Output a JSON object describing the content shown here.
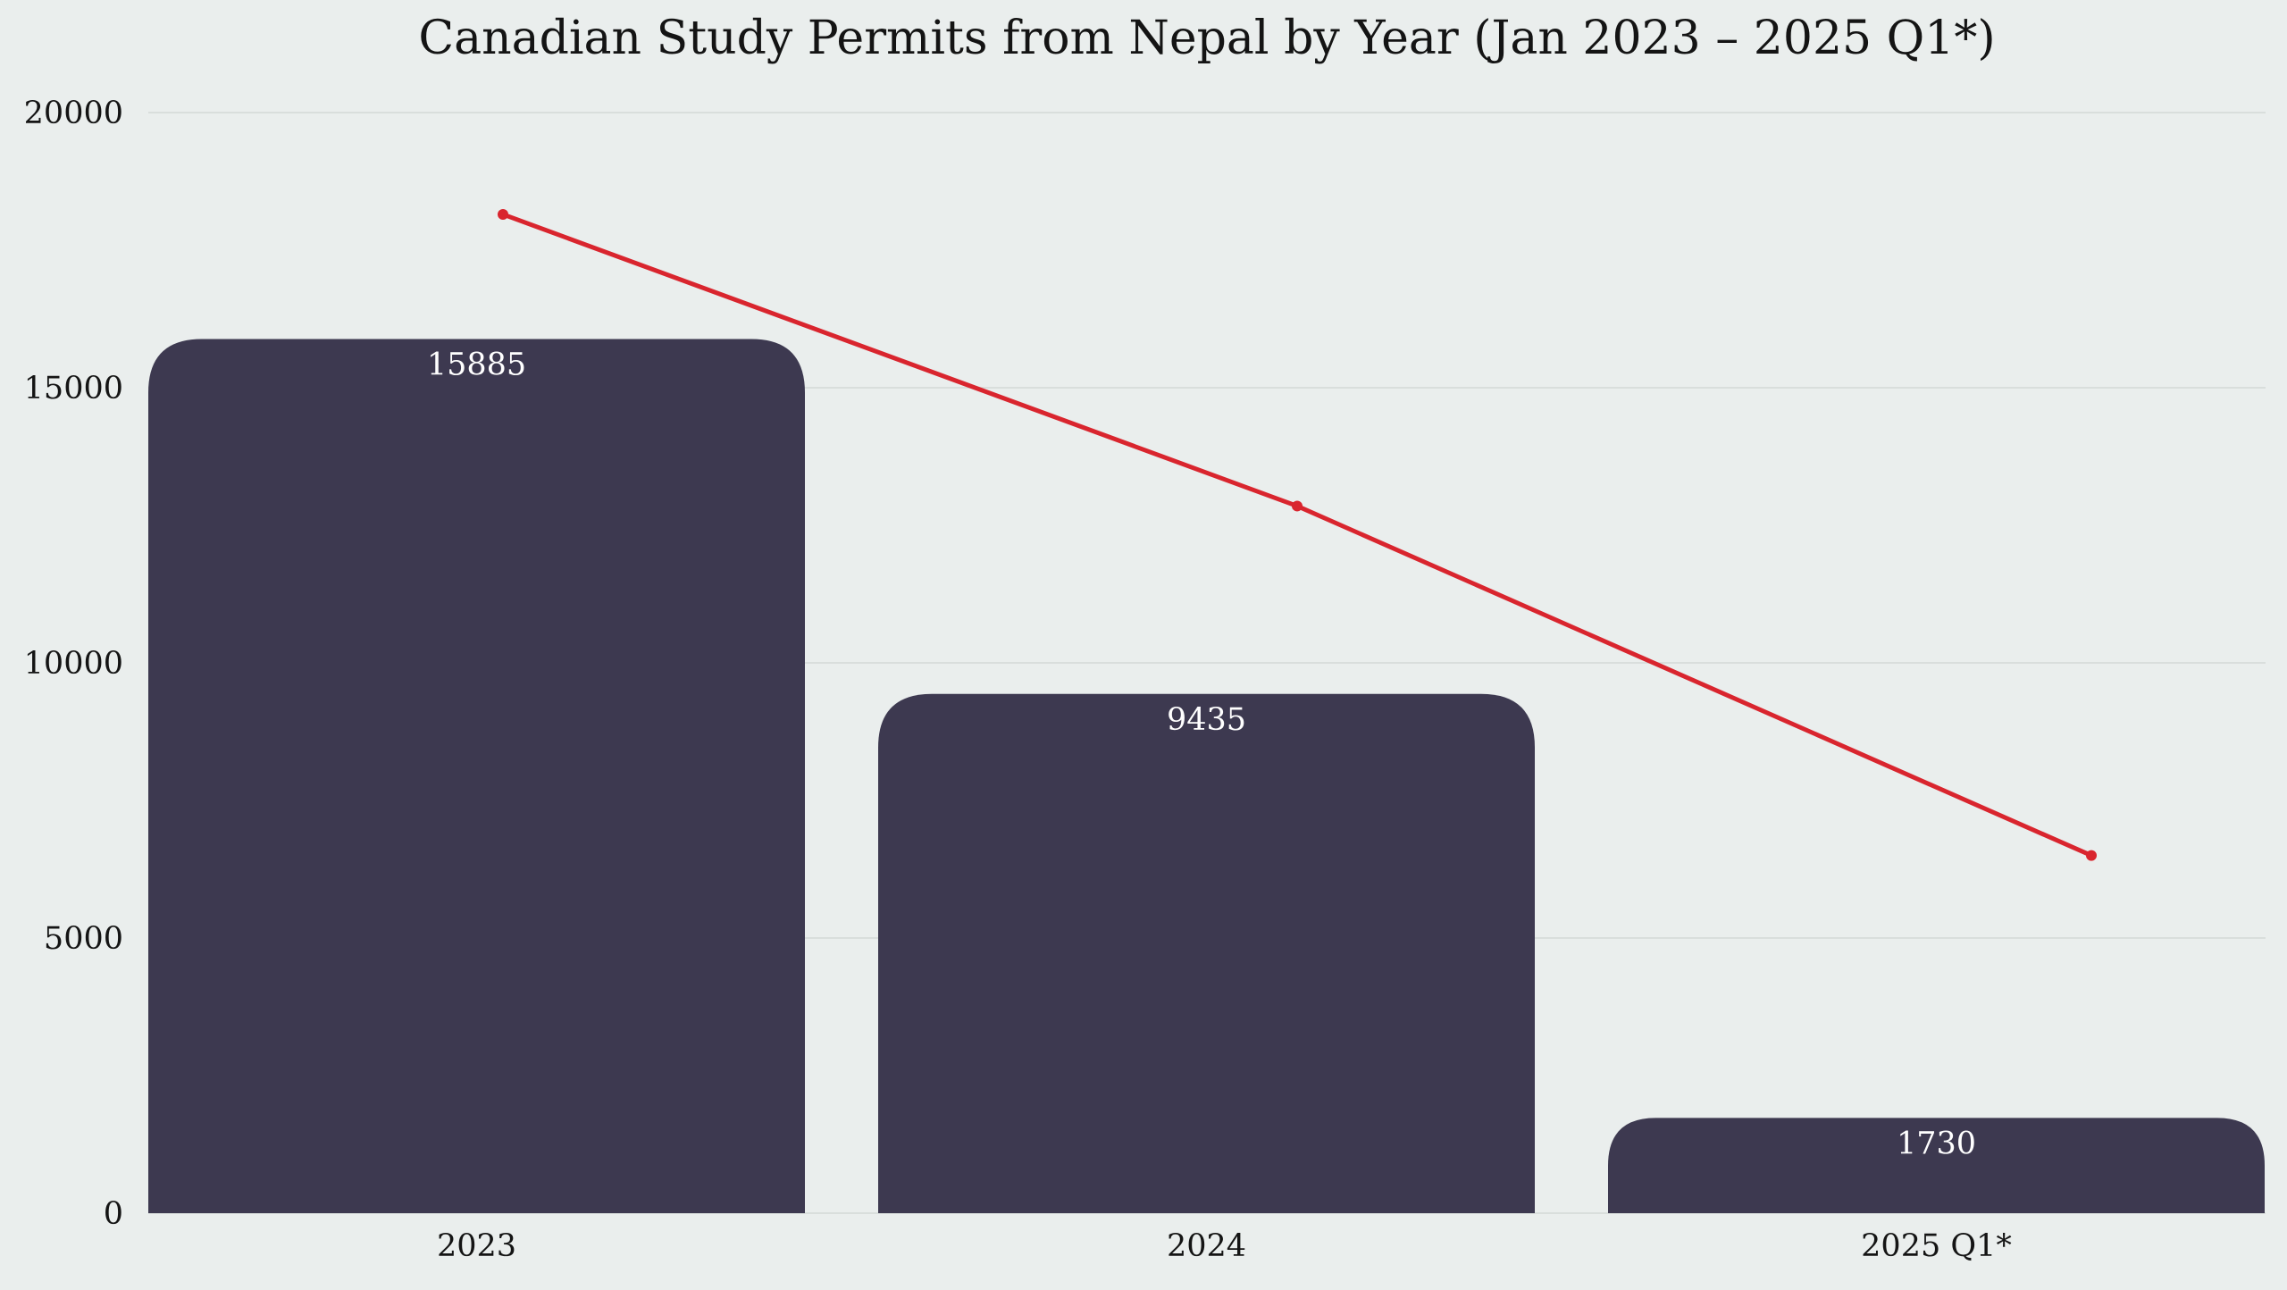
{
  "chart_data": {
    "type": "bar",
    "title": "Canadian Study Permits from Nepal by Year (Jan 2023 – 2025 Q1*)",
    "xlabel": "",
    "ylabel": "",
    "categories": [
      "2023",
      "2024",
      "2025 Q1*"
    ],
    "ylim": [
      0,
      20000
    ],
    "yticks": [
      "0",
      "5000",
      "10000",
      "15000",
      "20000"
    ],
    "grid": true,
    "legend": "none",
    "series": [
      {
        "type": "bar",
        "values": [
          15885,
          9435,
          1730
        ],
        "data_labels": [
          "15885",
          "9435",
          "1730"
        ],
        "color": "#3D3950"
      },
      {
        "type": "line",
        "values": [
          18150,
          12850,
          6500
        ],
        "color": "#D9252E"
      }
    ]
  }
}
